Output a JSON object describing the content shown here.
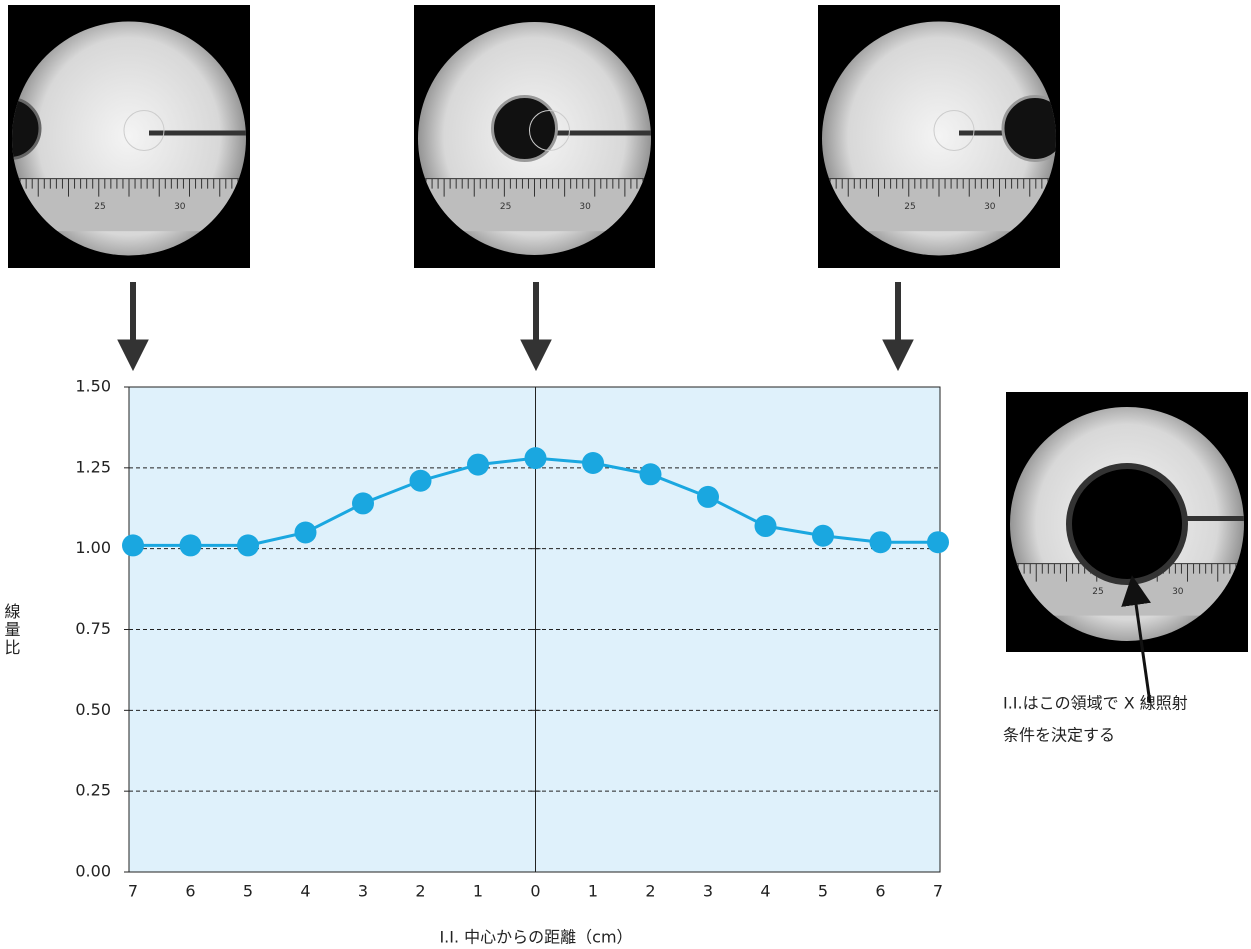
{
  "chart_data": {
    "type": "line",
    "x_label": "I.I. 中心からの距離（cm）",
    "y_label": "線量比",
    "categories": [
      "7",
      "6",
      "5",
      "4",
      "3",
      "2",
      "1",
      "0",
      "1",
      "2",
      "3",
      "4",
      "5",
      "6",
      "7"
    ],
    "values": [
      1.01,
      1.01,
      1.01,
      1.05,
      1.14,
      1.21,
      1.26,
      1.28,
      1.265,
      1.23,
      1.16,
      1.07,
      1.04,
      1.02,
      1.02
    ],
    "color": "#1aa7e0",
    "ylim": [
      0,
      1.5
    ],
    "yticks": [
      {
        "value": 0,
        "label": "0.00"
      },
      {
        "value": 0.25,
        "label": "0.25"
      },
      {
        "value": 0.5,
        "label": "0.50"
      },
      {
        "value": 0.75,
        "label": "0.75"
      },
      {
        "value": 1,
        "label": "1.00"
      },
      {
        "value": 1.25,
        "label": "1.25"
      },
      {
        "value": 1.5,
        "label": "1.50"
      }
    ],
    "grid": true,
    "annotation": [
      "I.I.はこの領域で X 線照射",
      "条件を決定する"
    ],
    "photos": [
      {
        "scale_labels": [
          "25",
          "30"
        ]
      },
      {
        "scale_labels": [
          "25",
          "30"
        ]
      },
      {
        "scale_labels": [
          "25",
          "30"
        ]
      },
      {
        "scale_labels": [
          "25",
          "30"
        ]
      }
    ]
  }
}
